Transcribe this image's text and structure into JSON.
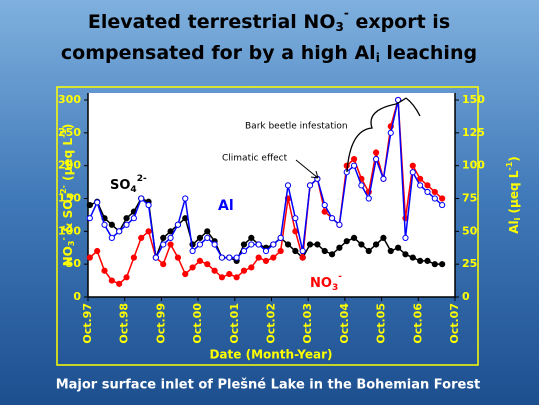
{
  "chart_data": {
    "type": "line",
    "title": {
      "line1": [
        "Elevated terrestrial NO",
        "3",
        "-",
        " export is"
      ],
      "line2": [
        "compensated for by a high Al",
        "i",
        " leaching"
      ]
    },
    "xlabel": "Date (Month-Year)",
    "ylabel": [
      "NO",
      "3",
      "-",
      " & SO",
      "4",
      "2-",
      " (µeq L",
      "-1",
      ")"
    ],
    "y2label": [
      "Al",
      "i",
      " (µeq L",
      "-1",
      ")"
    ],
    "footer": "Major surface inlet of Plešné Lake in the Bohemian Forest",
    "annotations": [
      "Bark beetle infestation",
      "Climatic effect"
    ],
    "xlim": [
      1997.75,
      2007.75
    ],
    "xticks": [
      {
        "value": 1997.75,
        "label": "Oct.97"
      },
      {
        "value": 1998.75,
        "label": "Oct.98"
      },
      {
        "value": 1999.75,
        "label": "Oct.99"
      },
      {
        "value": 2000.75,
        "label": "Oct.00"
      },
      {
        "value": 2001.75,
        "label": "Oct.01"
      },
      {
        "value": 2002.75,
        "label": "Oct.02"
      },
      {
        "value": 2003.75,
        "label": "Oct.03"
      },
      {
        "value": 2004.75,
        "label": "Oct.04"
      },
      {
        "value": 2005.75,
        "label": "Oct.05"
      },
      {
        "value": 2006.75,
        "label": "Oct.06"
      },
      {
        "value": 2007.75,
        "label": "Oct.07"
      }
    ],
    "ylim": [
      0,
      300
    ],
    "yticks": [
      0,
      50,
      100,
      150,
      200,
      250,
      300
    ],
    "y2lim": [
      0,
      150
    ],
    "y2ticks": [
      0,
      25,
      50,
      75,
      100,
      125,
      150
    ],
    "x": [
      1997.8,
      1998.0,
      1998.2,
      1998.4,
      1998.6,
      1998.8,
      1999.0,
      1999.2,
      1999.4,
      1999.6,
      1999.8,
      2000.0,
      2000.2,
      2000.4,
      2000.6,
      2000.8,
      2001.0,
      2001.2,
      2001.4,
      2001.6,
      2001.8,
      2002.0,
      2002.2,
      2002.4,
      2002.6,
      2002.8,
      2003.0,
      2003.2,
      2003.4,
      2003.6,
      2003.8,
      2004.0,
      2004.2,
      2004.4,
      2004.6,
      2004.8,
      2005.0,
      2005.2,
      2005.4,
      2005.6,
      2005.8,
      2006.0,
      2006.2,
      2006.4,
      2006.6,
      2006.8,
      2007.0,
      2007.2,
      2007.4
    ],
    "series": [
      {
        "name": [
          "SO",
          "4",
          "2-"
        ],
        "color": "#000000",
        "marker_fill": "#000000",
        "values": [
          140,
          145,
          120,
          110,
          100,
          120,
          130,
          150,
          145,
          60,
          90,
          100,
          110,
          120,
          80,
          90,
          100,
          85,
          60,
          60,
          55,
          80,
          90,
          80,
          75,
          80,
          90,
          80,
          70,
          60,
          80,
          80,
          70,
          65,
          75,
          85,
          90,
          80,
          70,
          80,
          90,
          70,
          75,
          65,
          60,
          55,
          55,
          50,
          50
        ]
      },
      {
        "name": [
          "NO",
          "3",
          "-"
        ],
        "color": "#ff0000",
        "marker_fill": "#ff0000",
        "values": [
          60,
          70,
          40,
          25,
          20,
          30,
          60,
          90,
          100,
          60,
          50,
          80,
          60,
          35,
          45,
          55,
          50,
          40,
          30,
          35,
          30,
          40,
          45,
          60,
          55,
          60,
          70,
          150,
          100,
          60,
          170,
          180,
          130,
          120,
          110,
          200,
          210,
          180,
          160,
          220,
          180,
          260,
          300,
          120,
          200,
          180,
          170,
          160,
          150
        ]
      },
      {
        "name": [
          "Al"
        ],
        "color": "#0000ff",
        "marker_fill": "#ffffff",
        "axis": "y2",
        "values": [
          60,
          72,
          55,
          45,
          50,
          55,
          60,
          75,
          70,
          30,
          40,
          45,
          55,
          75,
          35,
          40,
          45,
          40,
          30,
          30,
          30,
          35,
          40,
          40,
          35,
          40,
          45,
          85,
          60,
          35,
          85,
          90,
          70,
          60,
          55,
          95,
          100,
          85,
          75,
          105,
          90,
          125,
          150,
          45,
          95,
          85,
          80,
          75,
          70
        ]
      }
    ]
  }
}
